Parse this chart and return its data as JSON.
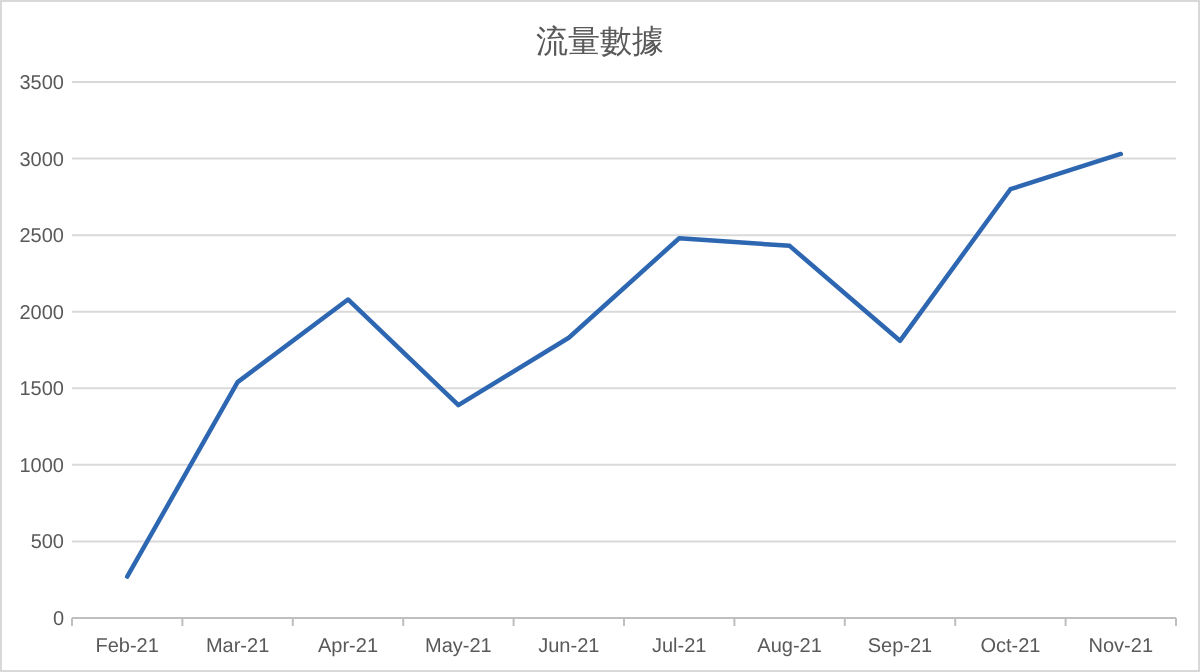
{
  "chart_data": {
    "type": "line",
    "title": "流量數據",
    "categories": [
      "Feb-21",
      "Mar-21",
      "Apr-21",
      "May-21",
      "Jun-21",
      "Jul-21",
      "Aug-21",
      "Sep-21",
      "Oct-21",
      "Nov-21"
    ],
    "series": [
      {
        "color": "#2e67b1",
        "values": [
          270,
          1540,
          2080,
          1390,
          1830,
          2480,
          2430,
          1810,
          2800,
          3030
        ]
      }
    ],
    "ylim": [
      0,
      3500
    ],
    "yticks": [
      0,
      500,
      1000,
      1500,
      2000,
      2500,
      3000,
      3500
    ],
    "grid": "y",
    "marker": "none",
    "line_style": "solid"
  }
}
